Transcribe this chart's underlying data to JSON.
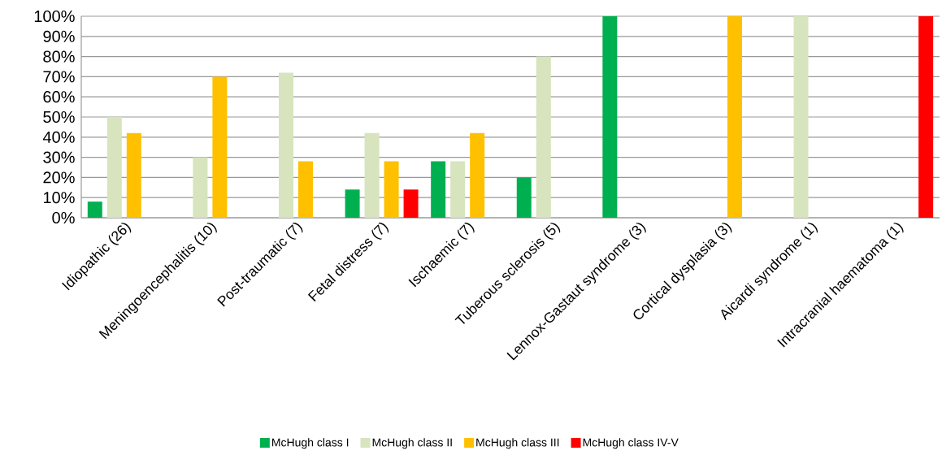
{
  "chart_data": {
    "type": "bar",
    "categories": [
      "Idiopathic (26)",
      "Meningoencephalitis (10)",
      "Post-traumatic (7)",
      "Fetal distress (7)",
      "Ischaemic (7)",
      "Tuberous sclerosis (5)",
      "Lennox-Gastaut syndrome (3)",
      "Cortical dysplasia (3)",
      "Aicardi syndrome (1)",
      "Intracranial haematoma (1)"
    ],
    "series": [
      {
        "name": "McHugh class I",
        "color": "#00b050",
        "values": [
          8,
          null,
          null,
          14,
          28,
          20,
          100,
          null,
          null,
          null
        ]
      },
      {
        "name": "McHugh class II",
        "color": "#d7e4bd",
        "values": [
          50,
          30,
          72,
          42,
          28,
          80,
          null,
          null,
          100,
          null
        ]
      },
      {
        "name": "McHugh class III",
        "color": "#ffc000",
        "values": [
          42,
          70,
          28,
          28,
          42,
          null,
          null,
          100,
          null,
          null
        ]
      },
      {
        "name": "McHugh class IV-V",
        "color": "#ff0000",
        "values": [
          null,
          null,
          null,
          14,
          null,
          null,
          null,
          null,
          null,
          100
        ]
      }
    ],
    "ylim": [
      0,
      100
    ],
    "yticks": [
      {
        "value": 0,
        "label": "0%"
      },
      {
        "value": 10,
        "label": "10%"
      },
      {
        "value": 20,
        "label": "20%"
      },
      {
        "value": 30,
        "label": "30%"
      },
      {
        "value": 40,
        "label": "40%"
      },
      {
        "value": 50,
        "label": "50%"
      },
      {
        "value": 60,
        "label": "60%"
      },
      {
        "value": 70,
        "label": "70%"
      },
      {
        "value": 80,
        "label": "80%"
      },
      {
        "value": 90,
        "label": "90%"
      },
      {
        "value": 100,
        "label": "100%"
      }
    ],
    "grid": "y",
    "legend": "bottom"
  }
}
